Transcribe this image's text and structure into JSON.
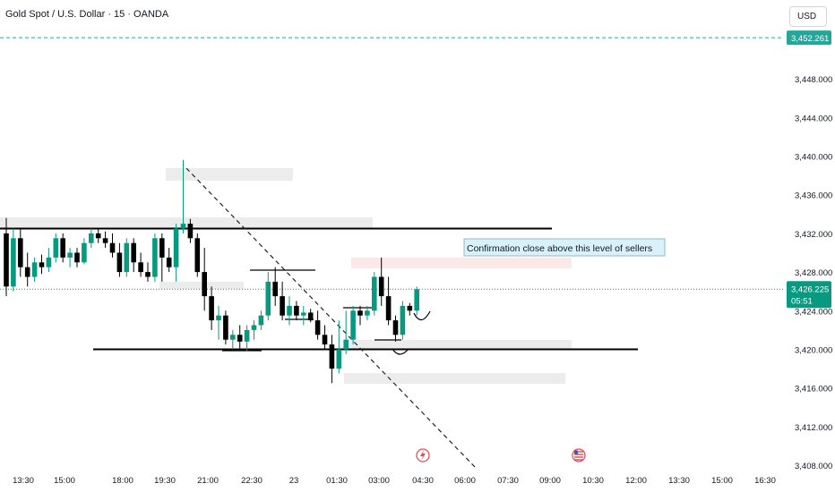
{
  "header": {
    "symbol_title": "Gold Spot / U.S. Dollar · 15 · OANDA",
    "currency": "USD"
  },
  "price_scale": {
    "top_marker": "3,452.261",
    "current_price": "3,426.225",
    "countdown": "05:51"
  },
  "annotation": {
    "text": "Confirmation close above this level of sellers"
  },
  "colors": {
    "up": "#089981",
    "down": "#000000",
    "dashed_level": "#26a69a",
    "annotation_bg": "#d9f2fa",
    "zone_gray": "#ececec",
    "zone_pink": "#fbe9e9"
  },
  "events": [
    {
      "icon": "lightning-event-icon",
      "time": "04:30"
    },
    {
      "icon": "us-flag-event-icon",
      "time": "10:30"
    }
  ],
  "chart_data": {
    "type": "candlestick",
    "title": "Gold Spot / U.S. Dollar · 15 · OANDA",
    "ylabel": "USD",
    "ylim": [
      3406.5,
      3454.0
    ],
    "y_ticks": [
      3408,
      3412,
      3416,
      3420,
      3424,
      3428,
      3432,
      3436,
      3440,
      3444,
      3448
    ],
    "x_tick_labels": [
      "13:30",
      "15:00",
      "18:00",
      "19:30",
      "21:00",
      "22:30",
      "23",
      "01:30",
      "03:00",
      "04:30",
      "06:00",
      "07:30",
      "09:00",
      "10:30",
      "12:00",
      "13:30",
      "15:00",
      "16:30"
    ],
    "grid": false,
    "horizontal_levels": [
      3432.5,
      3420.0
    ],
    "dashed_level": 3452.261,
    "current_price": 3426.225,
    "candles": [
      {
        "o": 3432.0,
        "h": 3433.6,
        "l": 3425.5,
        "c": 3426.5
      },
      {
        "o": 3426.5,
        "h": 3432.5,
        "l": 3426.0,
        "c": 3431.5
      },
      {
        "o": 3431.5,
        "h": 3432.5,
        "l": 3427.5,
        "c": 3428.5
      },
      {
        "o": 3428.5,
        "h": 3430.0,
        "l": 3426.5,
        "c": 3427.5
      },
      {
        "o": 3427.5,
        "h": 3429.5,
        "l": 3427.0,
        "c": 3429.0
      },
      {
        "o": 3429.0,
        "h": 3429.8,
        "l": 3427.8,
        "c": 3428.5
      },
      {
        "o": 3428.5,
        "h": 3430.5,
        "l": 3428.0,
        "c": 3429.5
      },
      {
        "o": 3429.5,
        "h": 3432.0,
        "l": 3429.0,
        "c": 3431.5
      },
      {
        "o": 3431.5,
        "h": 3432.0,
        "l": 3429.0,
        "c": 3429.5
      },
      {
        "o": 3429.5,
        "h": 3430.5,
        "l": 3428.5,
        "c": 3430.0
      },
      {
        "o": 3430.0,
        "h": 3430.5,
        "l": 3428.5,
        "c": 3429.0
      },
      {
        "o": 3429.0,
        "h": 3431.5,
        "l": 3428.8,
        "c": 3431.0
      },
      {
        "o": 3431.0,
        "h": 3432.5,
        "l": 3430.5,
        "c": 3432.0
      },
      {
        "o": 3432.0,
        "h": 3432.5,
        "l": 3431.0,
        "c": 3431.5
      },
      {
        "o": 3431.5,
        "h": 3432.2,
        "l": 3430.5,
        "c": 3431.0
      },
      {
        "o": 3431.0,
        "h": 3432.0,
        "l": 3429.5,
        "c": 3430.0
      },
      {
        "o": 3430.0,
        "h": 3431.0,
        "l": 3427.5,
        "c": 3428.0
      },
      {
        "o": 3428.0,
        "h": 3431.5,
        "l": 3427.5,
        "c": 3431.0
      },
      {
        "o": 3431.0,
        "h": 3431.5,
        "l": 3428.0,
        "c": 3429.0
      },
      {
        "o": 3429.0,
        "h": 3430.0,
        "l": 3427.5,
        "c": 3428.0
      },
      {
        "o": 3428.0,
        "h": 3429.0,
        "l": 3427.0,
        "c": 3427.5
      },
      {
        "o": 3427.5,
        "h": 3432.0,
        "l": 3427.0,
        "c": 3431.5
      },
      {
        "o": 3431.5,
        "h": 3432.0,
        "l": 3427.0,
        "c": 3429.5
      },
      {
        "o": 3429.5,
        "h": 3430.5,
        "l": 3428.0,
        "c": 3428.5
      },
      {
        "o": 3428.5,
        "h": 3433.0,
        "l": 3427.0,
        "c": 3432.5
      },
      {
        "o": 3432.5,
        "h": 3439.6,
        "l": 3432.0,
        "c": 3433.0
      },
      {
        "o": 3433.0,
        "h": 3433.5,
        "l": 3431.0,
        "c": 3431.5
      },
      {
        "o": 3431.5,
        "h": 3432.0,
        "l": 3427.5,
        "c": 3428.0
      },
      {
        "o": 3428.0,
        "h": 3430.5,
        "l": 3424.0,
        "c": 3425.5
      },
      {
        "o": 3425.5,
        "h": 3426.5,
        "l": 3422.0,
        "c": 3423.0
      },
      {
        "o": 3423.0,
        "h": 3424.5,
        "l": 3421.0,
        "c": 3423.5
      },
      {
        "o": 3423.5,
        "h": 3424.0,
        "l": 3420.5,
        "c": 3421.0
      },
      {
        "o": 3421.0,
        "h": 3422.0,
        "l": 3420.0,
        "c": 3421.5
      },
      {
        "o": 3421.5,
        "h": 3422.5,
        "l": 3420.0,
        "c": 3420.8
      },
      {
        "o": 3420.8,
        "h": 3422.5,
        "l": 3419.8,
        "c": 3422.0
      },
      {
        "o": 3422.0,
        "h": 3423.0,
        "l": 3421.0,
        "c": 3422.5
      },
      {
        "o": 3422.5,
        "h": 3424.0,
        "l": 3422.0,
        "c": 3423.5
      },
      {
        "o": 3423.5,
        "h": 3428.0,
        "l": 3423.0,
        "c": 3427.0
      },
      {
        "o": 3427.0,
        "h": 3428.5,
        "l": 3424.5,
        "c": 3425.5
      },
      {
        "o": 3425.5,
        "h": 3427.0,
        "l": 3423.0,
        "c": 3423.5
      },
      {
        "o": 3423.5,
        "h": 3425.5,
        "l": 3422.5,
        "c": 3424.5
      },
      {
        "o": 3424.5,
        "h": 3425.0,
        "l": 3423.0,
        "c": 3423.5
      },
      {
        "o": 3423.5,
        "h": 3424.5,
        "l": 3422.5,
        "c": 3423.8
      },
      {
        "o": 3423.8,
        "h": 3424.2,
        "l": 3422.8,
        "c": 3423.0
      },
      {
        "o": 3423.0,
        "h": 3424.0,
        "l": 3421.0,
        "c": 3421.5
      },
      {
        "o": 3421.5,
        "h": 3422.5,
        "l": 3420.0,
        "c": 3420.5
      },
      {
        "o": 3420.5,
        "h": 3421.5,
        "l": 3416.5,
        "c": 3418.0
      },
      {
        "o": 3418.0,
        "h": 3423.0,
        "l": 3417.5,
        "c": 3420.0
      },
      {
        "o": 3420.0,
        "h": 3424.0,
        "l": 3419.5,
        "c": 3421.0
      },
      {
        "o": 3421.0,
        "h": 3424.5,
        "l": 3420.5,
        "c": 3424.0
      },
      {
        "o": 3424.0,
        "h": 3424.5,
        "l": 3422.5,
        "c": 3423.5
      },
      {
        "o": 3423.5,
        "h": 3424.5,
        "l": 3423.0,
        "c": 3424.0
      },
      {
        "o": 3424.0,
        "h": 3428.0,
        "l": 3423.5,
        "c": 3427.5
      },
      {
        "o": 3427.5,
        "h": 3429.5,
        "l": 3424.5,
        "c": 3425.5
      },
      {
        "o": 3425.5,
        "h": 3427.5,
        "l": 3422.5,
        "c": 3423.0
      },
      {
        "o": 3423.0,
        "h": 3423.5,
        "l": 3420.8,
        "c": 3421.5
      },
      {
        "o": 3421.5,
        "h": 3425.0,
        "l": 3421.0,
        "c": 3424.5
      },
      {
        "o": 3424.5,
        "h": 3424.8,
        "l": 3423.5,
        "c": 3424.0
      },
      {
        "o": 3424.0,
        "h": 3426.5,
        "l": 3423.5,
        "c": 3426.225
      }
    ]
  }
}
